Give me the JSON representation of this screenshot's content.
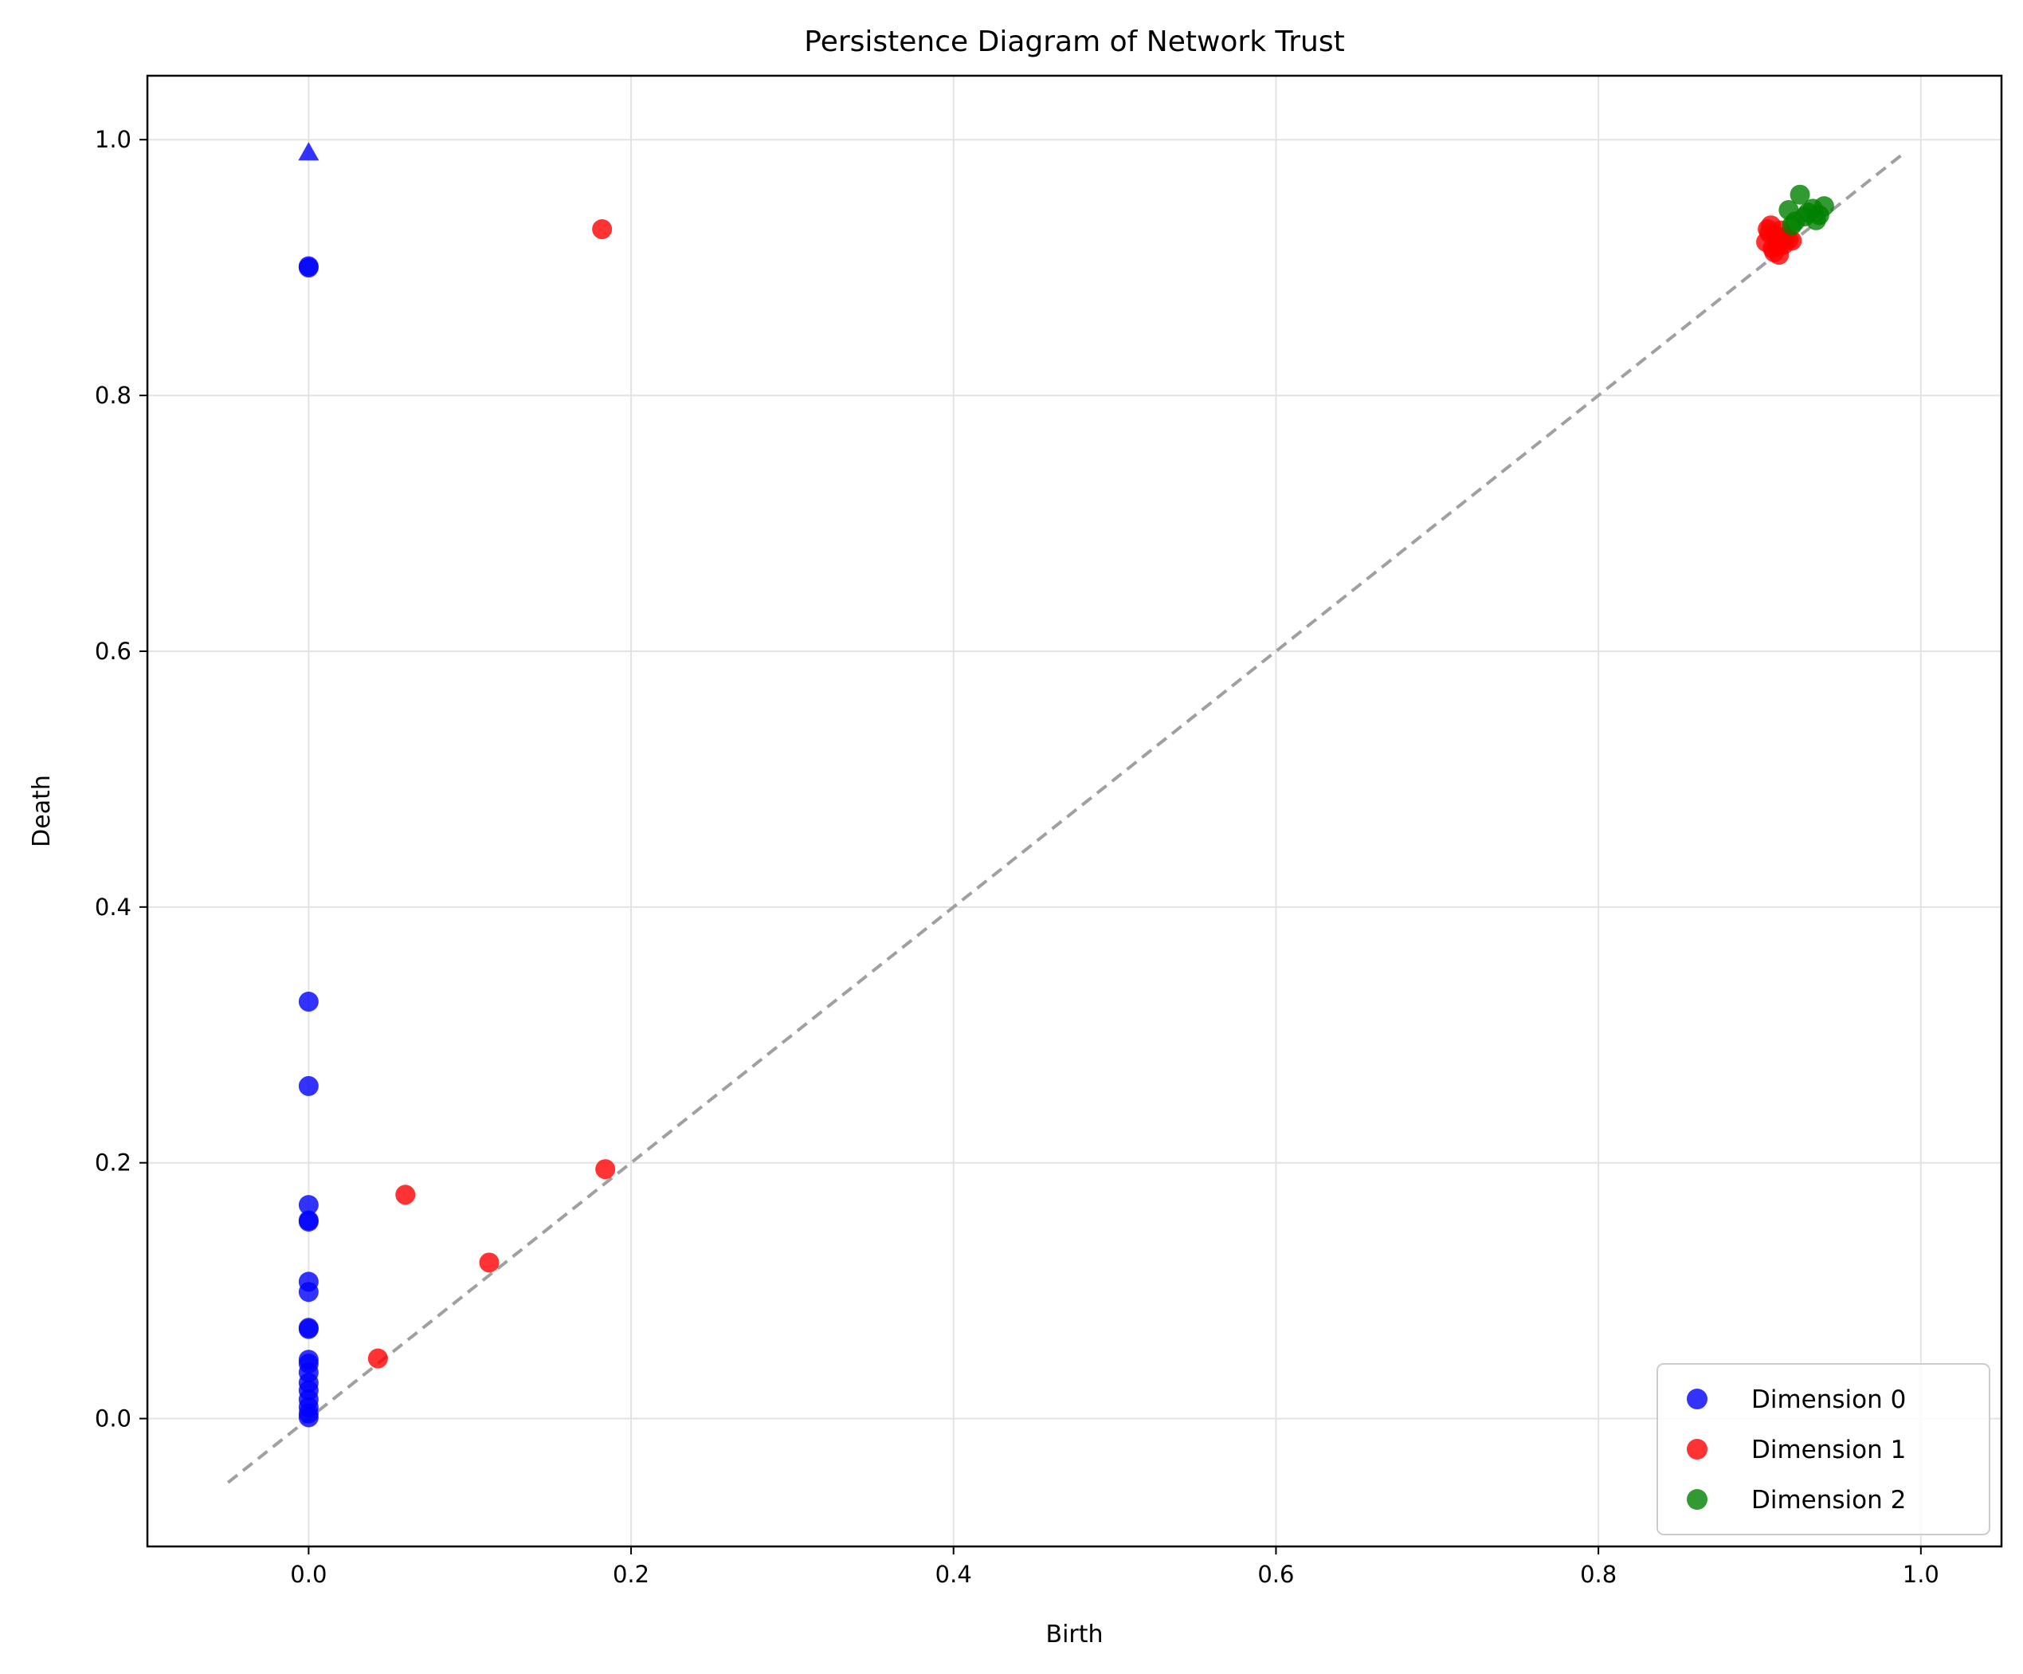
{
  "chart_data": {
    "type": "scatter",
    "title": "Persistence Diagram of Network Trust",
    "xlabel": "Birth",
    "ylabel": "Death",
    "xlim": [
      -0.1,
      1.05
    ],
    "ylim": [
      -0.1,
      1.05
    ],
    "xticks": [
      "0.0",
      "0.2",
      "0.4",
      "0.6",
      "0.8",
      "1.0"
    ],
    "yticks": [
      "0.0",
      "0.2",
      "0.4",
      "0.6",
      "0.8",
      "1.0"
    ],
    "grid": true,
    "legend_position": "lower-right",
    "diagonal": {
      "from": -0.05,
      "to": 0.99,
      "style": "dashed",
      "color": "#a0a0a0"
    },
    "series": [
      {
        "name": "Dimension 0",
        "color": "#0000ff",
        "x": [
          0,
          0,
          0,
          0,
          0,
          0,
          0,
          0,
          0,
          0,
          0,
          0,
          0,
          0,
          0,
          0,
          0,
          0,
          0,
          0
        ],
        "y": [
          0.9,
          0.901,
          0.326,
          0.26,
          0.167,
          0.155,
          0.154,
          0.107,
          0.099,
          0.07,
          0.071,
          0.046,
          0.043,
          0.036,
          0.028,
          0.022,
          0.015,
          0.009,
          0.004,
          0.001
        ],
        "infinite_points": [
          {
            "x": 0,
            "y": 0.99
          }
        ]
      },
      {
        "name": "Dimension 1",
        "color": "#ff0000",
        "x": [
          0.182,
          0.184,
          0.06,
          0.112,
          0.043,
          0.905,
          0.907,
          0.91,
          0.904,
          0.908,
          0.912,
          0.915,
          0.918,
          0.906,
          0.909,
          0.913,
          0.916,
          0.92,
          0.911
        ],
        "y": [
          0.93,
          0.195,
          0.175,
          0.122,
          0.047,
          0.93,
          0.933,
          0.925,
          0.92,
          0.915,
          0.91,
          0.918,
          0.922,
          0.927,
          0.912,
          0.929,
          0.924,
          0.921,
          0.917
        ]
      },
      {
        "name": "Dimension 2",
        "color": "#008000",
        "x": [
          0.925,
          0.918,
          0.94,
          0.935,
          0.93,
          0.92,
          0.928,
          0.933,
          0.937,
          0.922
        ],
        "y": [
          0.957,
          0.945,
          0.948,
          0.937,
          0.943,
          0.933,
          0.94,
          0.946,
          0.941,
          0.936
        ]
      }
    ]
  }
}
